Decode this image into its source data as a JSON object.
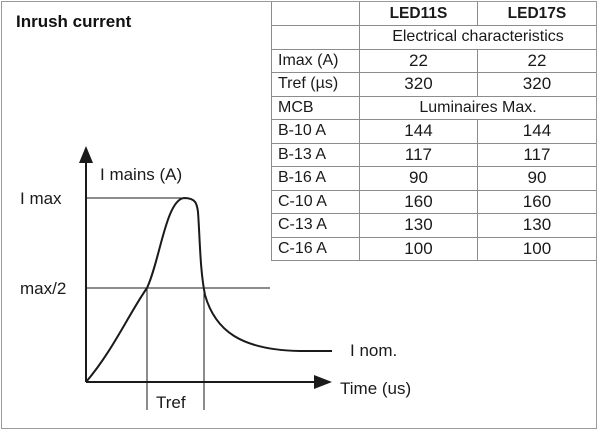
{
  "title": "Inrush current",
  "diagram": {
    "y_axis_label": "I mains (A)",
    "x_axis_label": "Time (us)",
    "imax_label": "I max",
    "half_label": "max/2",
    "inom_label": "I nom.",
    "tref_label": "Tref"
  },
  "table": {
    "columns": [
      "LED11S",
      "LED17S"
    ],
    "section1_title": "Electrical characteristics",
    "rows1": [
      {
        "label": "Imax (A)",
        "values": [
          "22",
          "22"
        ]
      },
      {
        "label": "Tref (µs)",
        "values": [
          "320",
          "320"
        ]
      }
    ],
    "section2_label": "MCB",
    "section2_title": "Luminaires Max.",
    "rows2": [
      {
        "label": "B-10 A",
        "values": [
          "144",
          "144"
        ]
      },
      {
        "label": "B-13 A",
        "values": [
          "117",
          "117"
        ]
      },
      {
        "label": "B-16 A",
        "values": [
          "90",
          "90"
        ]
      },
      {
        "label": "C-10 A",
        "values": [
          "160",
          "160"
        ]
      },
      {
        "label": "C-13 A",
        "values": [
          "130",
          "130"
        ]
      },
      {
        "label": "C-16 A",
        "values": [
          "100",
          "100"
        ]
      }
    ]
  }
}
